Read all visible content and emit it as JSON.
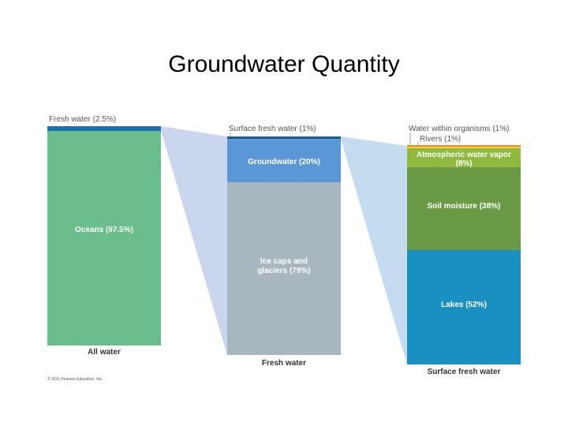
{
  "title": "Groundwater Quantity",
  "columns": [
    {
      "label": "All water",
      "callouts": [
        "Fresh water (2.5%)"
      ],
      "segments": [
        [
          "Oceans (97.5%)"
        ]
      ]
    },
    {
      "label": "Fresh water",
      "callouts": [
        "Surface fresh water (1%)"
      ],
      "segments": [
        [
          "Groundwater (20%)"
        ],
        [
          "Ice caps and",
          "glaciers (79%)"
        ]
      ]
    },
    {
      "label": "Surface fresh water",
      "callouts": [
        "Water within organisms (1%)",
        "Rivers (1%)"
      ],
      "segments": [
        [
          "Atmospheric water vapor",
          "(8%)"
        ],
        [
          "Soil moisture (38%)"
        ],
        [
          "Lakes (52%)"
        ]
      ]
    }
  ],
  "copyright": "© 2011 Pearson Education, Inc."
}
